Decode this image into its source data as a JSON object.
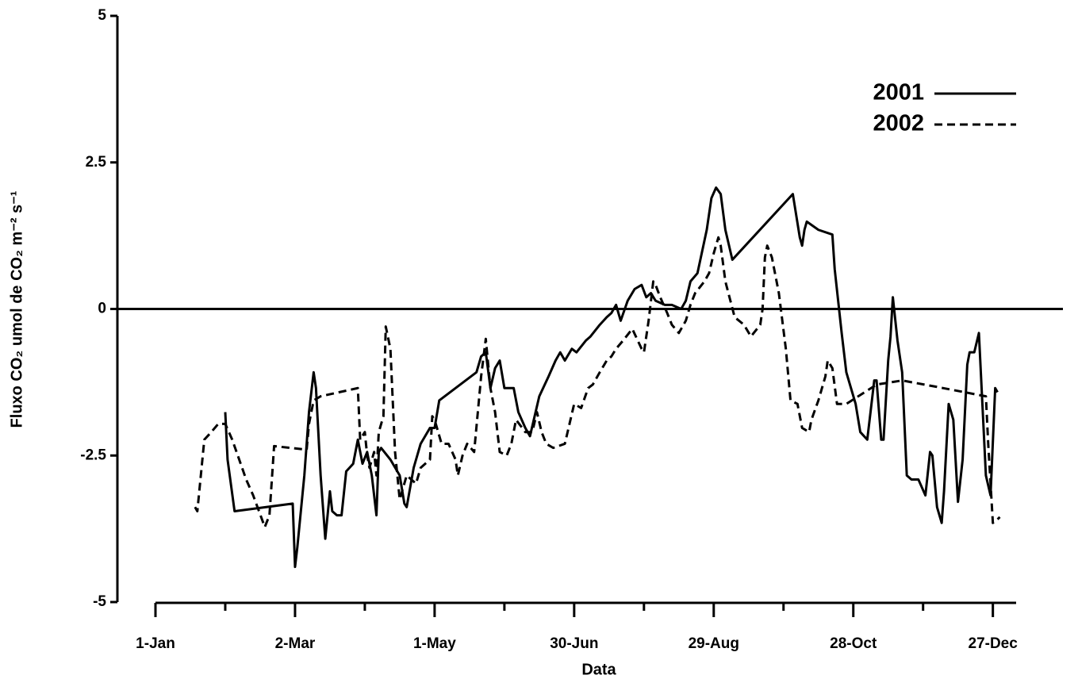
{
  "chart_data": {
    "type": "line",
    "xlabel": "Data",
    "ylabel": "Fluxo CO₂ umol de CO₂ m⁻² s⁻¹",
    "xlim": [
      1,
      371
    ],
    "ylim": [
      -5,
      5
    ],
    "xticks": [
      {
        "value": 1,
        "label": "1-Jan"
      },
      {
        "value": 61,
        "label": "2-Mar"
      },
      {
        "value": 121,
        "label": "1-May"
      },
      {
        "value": 181,
        "label": "30-Jun"
      },
      {
        "value": 241,
        "label": "29-Aug"
      },
      {
        "value": 301,
        "label": "28-Oct"
      },
      {
        "value": 361,
        "label": "27-Dec"
      }
    ],
    "xminorticks": [
      31,
      91,
      151,
      211,
      271,
      331
    ],
    "yticks": [
      5,
      2.5,
      0,
      -2.5,
      -5
    ],
    "hlines": [
      0
    ],
    "legend": "upper right",
    "series": [
      {
        "name": "2001",
        "color": "#000000",
        "linestyle": "solid",
        "x": [
          31,
          32,
          35,
          60,
          61,
          62,
          65,
          67,
          69,
          70,
          72,
          74,
          76,
          77,
          79,
          81,
          83,
          86,
          88,
          90,
          92,
          94,
          96,
          97,
          98,
          102,
          106,
          108,
          109,
          112,
          115,
          119,
          121,
          123,
          139,
          141,
          143,
          145,
          147,
          149,
          151,
          155,
          157,
          160,
          162,
          164,
          166,
          170,
          173,
          175,
          177,
          180,
          182,
          186,
          188,
          192,
          195,
          197,
          199,
          201,
          204,
          207,
          210,
          212,
          214,
          216,
          220,
          223,
          227,
          229,
          231,
          234,
          238,
          240,
          242,
          244,
          246,
          249,
          275,
          278,
          279,
          280,
          281,
          286,
          292,
          293,
          296,
          298,
          302,
          304,
          307,
          309,
          310,
          311,
          313,
          314,
          316,
          317,
          318,
          320,
          322,
          324,
          326,
          329,
          332,
          334,
          335,
          337,
          339,
          340,
          342,
          344,
          346,
          348,
          350,
          351,
          353,
          355,
          358,
          360,
          362,
          363
        ],
        "values": [
          -1.76,
          -2.57,
          -3.45,
          -3.32,
          -4.4,
          -4.06,
          -2.84,
          -1.76,
          -1.08,
          -1.35,
          -2.84,
          -3.92,
          -3.11,
          -3.45,
          -3.52,
          -3.52,
          -2.77,
          -2.64,
          -2.23,
          -2.64,
          -2.44,
          -2.84,
          -3.52,
          -2.44,
          -2.37,
          -2.57,
          -2.84,
          -3.32,
          -3.38,
          -2.71,
          -2.3,
          -2.03,
          -2.03,
          -1.56,
          -1.08,
          -0.81,
          -0.74,
          -1.35,
          -1.01,
          -0.88,
          -1.35,
          -1.35,
          -1.76,
          -2.03,
          -2.17,
          -1.83,
          -1.49,
          -1.15,
          -0.88,
          -0.74,
          -0.88,
          -0.68,
          -0.74,
          -0.54,
          -0.47,
          -0.27,
          -0.14,
          -0.07,
          0.07,
          -0.2,
          0.14,
          0.34,
          0.41,
          0.2,
          0.27,
          0.14,
          0.07,
          0.07,
          0,
          0.14,
          0.47,
          0.61,
          1.35,
          1.89,
          2.07,
          1.96,
          1.35,
          0.84,
          1.96,
          1.22,
          1.08,
          1.35,
          1.49,
          1.35,
          1.27,
          0.68,
          -0.41,
          -1.08,
          -1.62,
          -2.1,
          -2.23,
          -1.56,
          -1.22,
          -1.22,
          -2.23,
          -2.23,
          -0.88,
          -0.47,
          0.2,
          -0.54,
          -1.08,
          -2.84,
          -2.91,
          -2.91,
          -3.18,
          -2.44,
          -2.5,
          -3.38,
          -3.65,
          -3.11,
          -1.62,
          -1.89,
          -3.29,
          -2.57,
          -0.95,
          -0.74,
          -0.74,
          -0.41,
          -2.84,
          -3.18,
          -1.35,
          -1.42
        ]
      },
      {
        "name": "2002",
        "color": "#000000",
        "linestyle": "dashed",
        "x": [
          18,
          19,
          22,
          25,
          28,
          31,
          34,
          37,
          40,
          43,
          48,
          50,
          52,
          66,
          67,
          69,
          72,
          88,
          89,
          91,
          92,
          93,
          95,
          96,
          97,
          99,
          100,
          102,
          104,
          106,
          109,
          113,
          115,
          119,
          120,
          121,
          124,
          127,
          130,
          131,
          133,
          135,
          138,
          141,
          143,
          145,
          147,
          149,
          152,
          154,
          156,
          160,
          163,
          165,
          167,
          169,
          172,
          177,
          179,
          181,
          184,
          187,
          189,
          192,
          195,
          197,
          199,
          202,
          206,
          210,
          211,
          213,
          215,
          216,
          218,
          221,
          223,
          226,
          229,
          231,
          233,
          237,
          239,
          241,
          243,
          244,
          246,
          250,
          254,
          257,
          261,
          262,
          263,
          264,
          266,
          269,
          272,
          274,
          277,
          279,
          282,
          283,
          286,
          289,
          290,
          292,
          294,
          298,
          311,
          322,
          337,
          358,
          359,
          361,
          363,
          364
        ],
        "values": [
          -3.38,
          -3.45,
          -2.23,
          -2.1,
          -1.96,
          -1.96,
          -2.23,
          -2.57,
          -2.91,
          -3.18,
          -3.72,
          -3.52,
          -2.34,
          -2.4,
          -1.96,
          -1.56,
          -1.49,
          -1.35,
          -2.23,
          -2.1,
          -2.5,
          -2.71,
          -2.44,
          -2.84,
          -2.1,
          -1.83,
          -0.3,
          -0.68,
          -2.44,
          -3.25,
          -2.84,
          -2.98,
          -2.71,
          -2.57,
          -1.83,
          -1.89,
          -2.3,
          -2.3,
          -2.57,
          -2.84,
          -2.5,
          -2.3,
          -2.44,
          -1.15,
          -0.51,
          -1.35,
          -1.76,
          -2.44,
          -2.5,
          -2.3,
          -1.89,
          -2.1,
          -2.1,
          -1.76,
          -2.1,
          -2.3,
          -2.37,
          -2.3,
          -1.96,
          -1.62,
          -1.69,
          -1.35,
          -1.29,
          -1.08,
          -0.88,
          -0.81,
          -0.68,
          -0.54,
          -0.34,
          -0.68,
          -0.74,
          -0.2,
          0.47,
          0.41,
          0.2,
          -0.07,
          -0.27,
          -0.41,
          -0.2,
          0.07,
          0.27,
          0.47,
          0.61,
          0.95,
          1.22,
          1.08,
          0.47,
          -0.14,
          -0.27,
          -0.47,
          -0.27,
          0,
          0.88,
          1.08,
          0.88,
          0.27,
          -0.68,
          -1.56,
          -1.62,
          -2.03,
          -2.1,
          -1.89,
          -1.56,
          -1.15,
          -0.88,
          -1.01,
          -1.62,
          -1.62,
          -1.29,
          -1.22,
          -1.33,
          -1.49,
          -2.3,
          -3.65,
          -3.59,
          -3.55
        ]
      }
    ]
  }
}
